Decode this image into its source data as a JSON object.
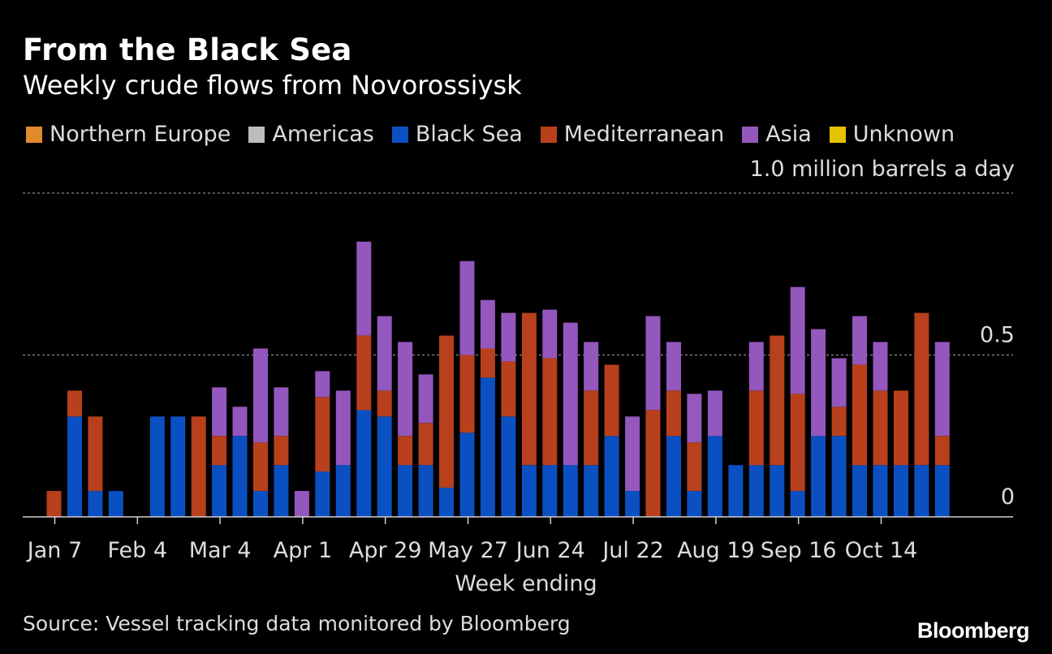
{
  "title": "From the Black Sea",
  "subtitle": "Weekly crude flows from Novorossiysk",
  "unit_label": "1.0 million barrels a day",
  "x_axis_label": "Week ending",
  "source": "Source: Vessel tracking data monitored by Bloomberg",
  "brand": "Bloomberg",
  "chart_data": {
    "type": "bar",
    "stacked": true,
    "title": "From the Black Sea",
    "subtitle": "Weekly crude flows from Novorossiysk",
    "xlabel": "Week ending",
    "ylabel": "million barrels a day",
    "ylim": [
      0,
      1.0
    ],
    "y_ticks": [
      {
        "value": 0,
        "label": "0"
      },
      {
        "value": 0.5,
        "label": "0.5"
      },
      {
        "value": 1.0,
        "label": "1.0 million barrels a day"
      }
    ],
    "x_tick_labels": [
      {
        "index": 0,
        "label": "Jan 7"
      },
      {
        "index": 4,
        "label": "Feb 4"
      },
      {
        "index": 8,
        "label": "Mar 4"
      },
      {
        "index": 12,
        "label": "Apr 1"
      },
      {
        "index": 16,
        "label": "Apr 29"
      },
      {
        "index": 20,
        "label": "May 27"
      },
      {
        "index": 24,
        "label": "Jun 24"
      },
      {
        "index": 28,
        "label": "Jul 22"
      },
      {
        "index": 32,
        "label": "Aug 19"
      },
      {
        "index": 36,
        "label": "Sep 16"
      },
      {
        "index": 40,
        "label": "Oct 14"
      }
    ],
    "week_count": 44,
    "legend": [
      {
        "name": "Northern Europe",
        "color": "#e08a2c"
      },
      {
        "name": "Americas",
        "color": "#bdbdbd"
      },
      {
        "name": "Black Sea",
        "color": "#0a50c2"
      },
      {
        "name": "Mediterranean",
        "color": "#b8401c"
      },
      {
        "name": "Asia",
        "color": "#9457bd"
      },
      {
        "name": "Unknown",
        "color": "#e6c300"
      }
    ],
    "series": [
      {
        "name": "Northern Europe",
        "color": "#e08a2c",
        "values": [
          0,
          0,
          0,
          0,
          0,
          0,
          0,
          0,
          0,
          0,
          0,
          0,
          0,
          0,
          0,
          0,
          0,
          0,
          0,
          0,
          0,
          0,
          0,
          0,
          0,
          0,
          0,
          0,
          0,
          0,
          0,
          0,
          0,
          0,
          0,
          0,
          0,
          0,
          0,
          0,
          0,
          0,
          0,
          0
        ]
      },
      {
        "name": "Americas",
        "color": "#bdbdbd",
        "values": [
          0,
          0,
          0,
          0,
          0,
          0,
          0,
          0,
          0,
          0,
          0,
          0,
          0,
          0,
          0,
          0,
          0,
          0,
          0,
          0,
          0,
          0,
          0,
          0,
          0,
          0,
          0,
          0,
          0,
          0,
          0,
          0,
          0,
          0,
          0,
          0,
          0,
          0,
          0,
          0,
          0,
          0,
          0,
          0
        ]
      },
      {
        "name": "Black Sea",
        "color": "#0a50c2",
        "values": [
          0,
          0.31,
          0.08,
          0.08,
          0,
          0.31,
          0.31,
          0,
          0.16,
          0.25,
          0.08,
          0.16,
          0,
          0.14,
          0.16,
          0.33,
          0.31,
          0.16,
          0.16,
          0.09,
          0.26,
          0.43,
          0.31,
          0.16,
          0.16,
          0.16,
          0.16,
          0.25,
          0.08,
          0,
          0.25,
          0.08,
          0.25,
          0.16,
          0.16,
          0.16,
          0.08,
          0.25,
          0.25,
          0.16,
          0.16,
          0.16,
          0.16,
          0.16
        ]
      },
      {
        "name": "Mediterranean",
        "color": "#b8401c",
        "values": [
          0.08,
          0.08,
          0.23,
          0,
          0,
          0,
          0,
          0.31,
          0.09,
          0,
          0.15,
          0.09,
          0,
          0.23,
          0,
          0.23,
          0.08,
          0.09,
          0.13,
          0.47,
          0.24,
          0.09,
          0.17,
          0.47,
          0.33,
          0,
          0.23,
          0.22,
          0,
          0.33,
          0.14,
          0.15,
          0,
          0,
          0.23,
          0.4,
          0.3,
          0,
          0.09,
          0.31,
          0.23,
          0.23,
          0.47,
          0.09
        ]
      },
      {
        "name": "Asia",
        "color": "#9457bd",
        "values": [
          0,
          0,
          0,
          0,
          0,
          0,
          0,
          0,
          0.15,
          0.09,
          0.29,
          0.15,
          0.08,
          0.08,
          0.23,
          0.29,
          0.23,
          0.29,
          0.15,
          0,
          0.29,
          0.15,
          0.15,
          0,
          0.15,
          0.44,
          0.15,
          0,
          0.23,
          0.29,
          0.15,
          0.15,
          0.14,
          0,
          0.15,
          0,
          0.33,
          0.33,
          0.15,
          0.15,
          0.15,
          0,
          0,
          0.29
        ]
      },
      {
        "name": "Unknown",
        "color": "#e6c300",
        "values": [
          0,
          0,
          0,
          0,
          0,
          0,
          0,
          0,
          0,
          0,
          0,
          0,
          0,
          0,
          0,
          0,
          0,
          0,
          0,
          0,
          0,
          0,
          0,
          0,
          0,
          0,
          0,
          0,
          0,
          0,
          0,
          0,
          0,
          0,
          0,
          0,
          0,
          0,
          0,
          0,
          0,
          0,
          0,
          0
        ]
      }
    ]
  }
}
